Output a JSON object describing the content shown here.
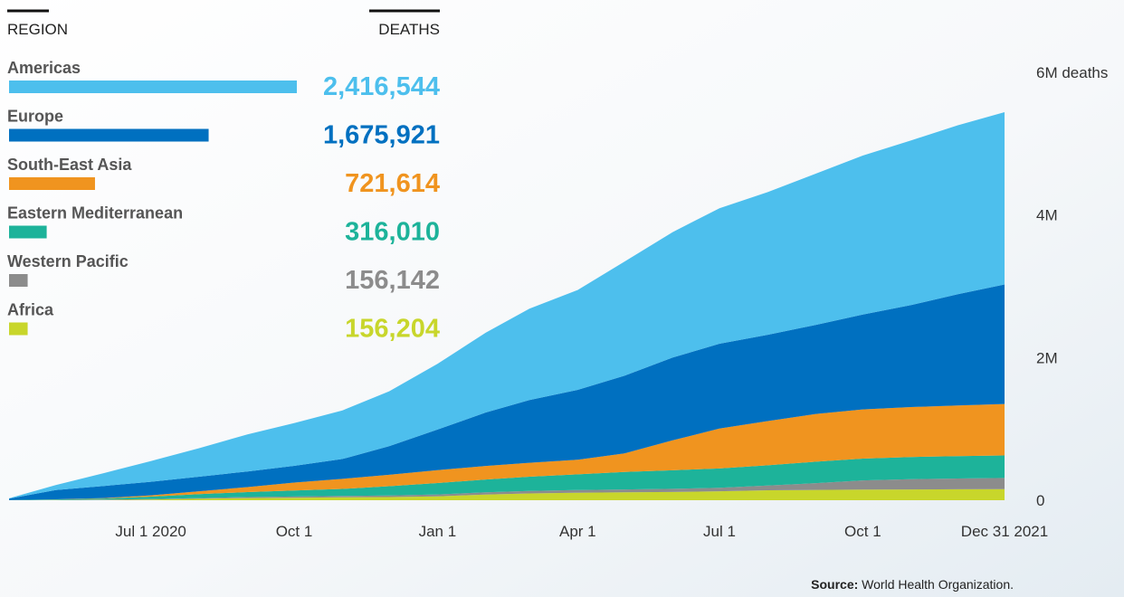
{
  "chart_data": {
    "type": "stacked_area",
    "column_headers": [
      "REGION",
      "DEATHS"
    ],
    "source_label": "Source:",
    "source": "World Health Organization.",
    "x": [
      "2020-04-01",
      "2020-05-01",
      "2020-06-01",
      "2020-07-01",
      "2020-08-01",
      "2020-09-01",
      "2020-10-01",
      "2020-11-01",
      "2020-12-01",
      "2021-01-01",
      "2021-02-01",
      "2021-03-01",
      "2021-04-01",
      "2021-05-01",
      "2021-06-01",
      "2021-07-01",
      "2021-08-01",
      "2021-09-01",
      "2021-10-01",
      "2021-11-01",
      "2021-12-01",
      "2021-12-31"
    ],
    "xlim": [
      "2020-04-01",
      "2021-12-31"
    ],
    "xticks": [
      {
        "value": "2020-07-01",
        "label": "Jul 1 2020"
      },
      {
        "value": "2020-10-01",
        "label": "Oct 1"
      },
      {
        "value": "2021-01-01",
        "label": "Jan 1"
      },
      {
        "value": "2021-04-01",
        "label": "Apr 1"
      },
      {
        "value": "2021-07-01",
        "label": "Jul 1"
      },
      {
        "value": "2021-10-01",
        "label": "Oct 1"
      },
      {
        "value": "2021-12-31",
        "label": "Dec 31 2021"
      }
    ],
    "ylim": [
      0,
      6000000
    ],
    "yticks": [
      0,
      {
        "value": 2000000,
        "label": "2M"
      },
      {
        "value": 4000000,
        "label": "4M"
      },
      {
        "value": 6000000,
        "label": "6M deaths"
      }
    ],
    "series": [
      {
        "name": "Americas",
        "color": "#4dbfed",
        "total": 2416544,
        "total_label": "2,416,544",
        "values": [
          5000,
          70000,
          180000,
          290000,
          400000,
          520000,
          600000,
          680000,
          770000,
          920000,
          1120000,
          1280000,
          1400000,
          1600000,
          1760000,
          1900000,
          2000000,
          2120000,
          2230000,
          2310000,
          2370000,
          2416544
        ]
      },
      {
        "name": "Europe",
        "color": "#0070c0",
        "total": 1675921,
        "total_label": "1,675,921",
        "values": [
          20000,
          130000,
          170000,
          190000,
          205000,
          220000,
          235000,
          280000,
          400000,
          570000,
          750000,
          880000,
          980000,
          1090000,
          1160000,
          1190000,
          1210000,
          1250000,
          1330000,
          1430000,
          1560000,
          1675921
        ]
      },
      {
        "name": "South-East Asia",
        "color": "#f0941f",
        "total": 721614,
        "total_label": "721,614",
        "values": [
          0,
          1000,
          6000,
          18000,
          40000,
          70000,
          110000,
          140000,
          160000,
          180000,
          190000,
          195000,
          205000,
          260000,
          420000,
          560000,
          620000,
          670000,
          690000,
          700000,
          710000,
          721614
        ]
      },
      {
        "name": "Eastern Mediterranean",
        "color": "#1db39a",
        "total": 316010,
        "total_label": "316,010",
        "values": [
          1000,
          8000,
          15000,
          35000,
          55000,
          70000,
          85000,
          100000,
          130000,
          160000,
          180000,
          200000,
          220000,
          245000,
          260000,
          270000,
          285000,
          300000,
          305000,
          310000,
          313000,
          316010
        ]
      },
      {
        "name": "Western Pacific",
        "color": "#8c8c8c",
        "total": 156142,
        "total_label": "156,142",
        "values": [
          500,
          3000,
          5000,
          7000,
          10000,
          14000,
          17000,
          19000,
          22000,
          26000,
          31000,
          35000,
          38000,
          41000,
          45000,
          50000,
          65000,
          95000,
          130000,
          145000,
          152000,
          156142
        ]
      },
      {
        "name": "Africa",
        "color": "#c8d62b",
        "total": 156204,
        "total_label": "156,204",
        "values": [
          0,
          1000,
          4000,
          9000,
          20000,
          30000,
          35000,
          40000,
          45000,
          55000,
          80000,
          95000,
          105000,
          110000,
          115000,
          125000,
          140000,
          145000,
          148000,
          151000,
          153000,
          156204
        ]
      }
    ]
  }
}
